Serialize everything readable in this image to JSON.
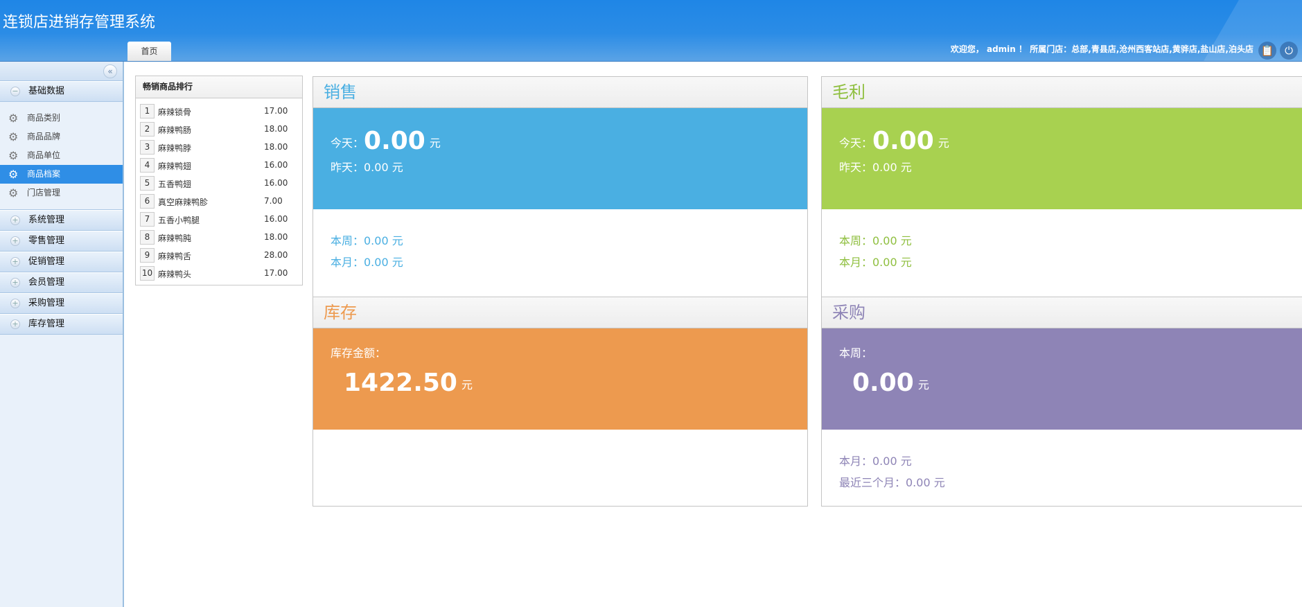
{
  "header": {
    "title": "连锁店进销存管理系统",
    "tab": "首页",
    "welcome": "欢迎您， admin ！ 所属门店：总部,青县店,沧州西客站店,黄骅店,盐山店,泊头店",
    "icons": [
      "clipboard-icon",
      "power-icon"
    ]
  },
  "sidebar": {
    "collapse_icon": "«",
    "open_group": {
      "label": "基础数据",
      "items": [
        {
          "label": "商品类别"
        },
        {
          "label": "商品品牌"
        },
        {
          "label": "商品单位"
        },
        {
          "label": "商品档案",
          "active": true
        },
        {
          "label": "门店管理"
        }
      ]
    },
    "groups": [
      {
        "label": "系统管理"
      },
      {
        "label": "零售管理"
      },
      {
        "label": "促销管理"
      },
      {
        "label": "会员管理"
      },
      {
        "label": "采购管理"
      },
      {
        "label": "库存管理"
      }
    ]
  },
  "ranking": {
    "title": "畅销商品排行",
    "rows": [
      {
        "n": "1",
        "name": "麻辣锁骨",
        "price": "17.00"
      },
      {
        "n": "2",
        "name": "麻辣鸭肠",
        "price": "18.00"
      },
      {
        "n": "3",
        "name": "麻辣鸭脖",
        "price": "18.00"
      },
      {
        "n": "4",
        "name": "麻辣鸭翅",
        "price": "16.00"
      },
      {
        "n": "5",
        "name": "五香鸭翅",
        "price": "16.00"
      },
      {
        "n": "6",
        "name": "真空麻辣鸭胗",
        "price": "7.00"
      },
      {
        "n": "7",
        "name": "五香小鸭腿",
        "price": "16.00"
      },
      {
        "n": "8",
        "name": "麻辣鸭肫",
        "price": "18.00"
      },
      {
        "n": "9",
        "name": "麻辣鸭舌",
        "price": "28.00"
      },
      {
        "n": "10",
        "name": "麻辣鸭头",
        "price": "17.00"
      }
    ]
  },
  "sales": {
    "title": "销售",
    "color": "#4aafe2",
    "today_label": "今天：",
    "today": "0.00",
    "unit": "元",
    "yesterday": "昨天：0.00 元",
    "week": "本周：0.00 元",
    "month": "本月：0.00 元"
  },
  "profit": {
    "title": "毛利",
    "color": "#a8d150",
    "today_label": "今天：",
    "today": "0.00",
    "unit": "元",
    "yesterday": "昨天：0.00 元",
    "week": "本周：0.00 元",
    "month": "本月：0.00 元"
  },
  "stock": {
    "title": "库存",
    "color": "#ed9a4f",
    "label": "库存金额：",
    "value": "1422.50",
    "unit": "元"
  },
  "purchase": {
    "title": "采购",
    "color": "#8e84b6",
    "label": "本周：",
    "value": "0.00",
    "unit": "元",
    "month": "本月：0.00 元",
    "three_months": "最近三个月：0.00 元"
  }
}
